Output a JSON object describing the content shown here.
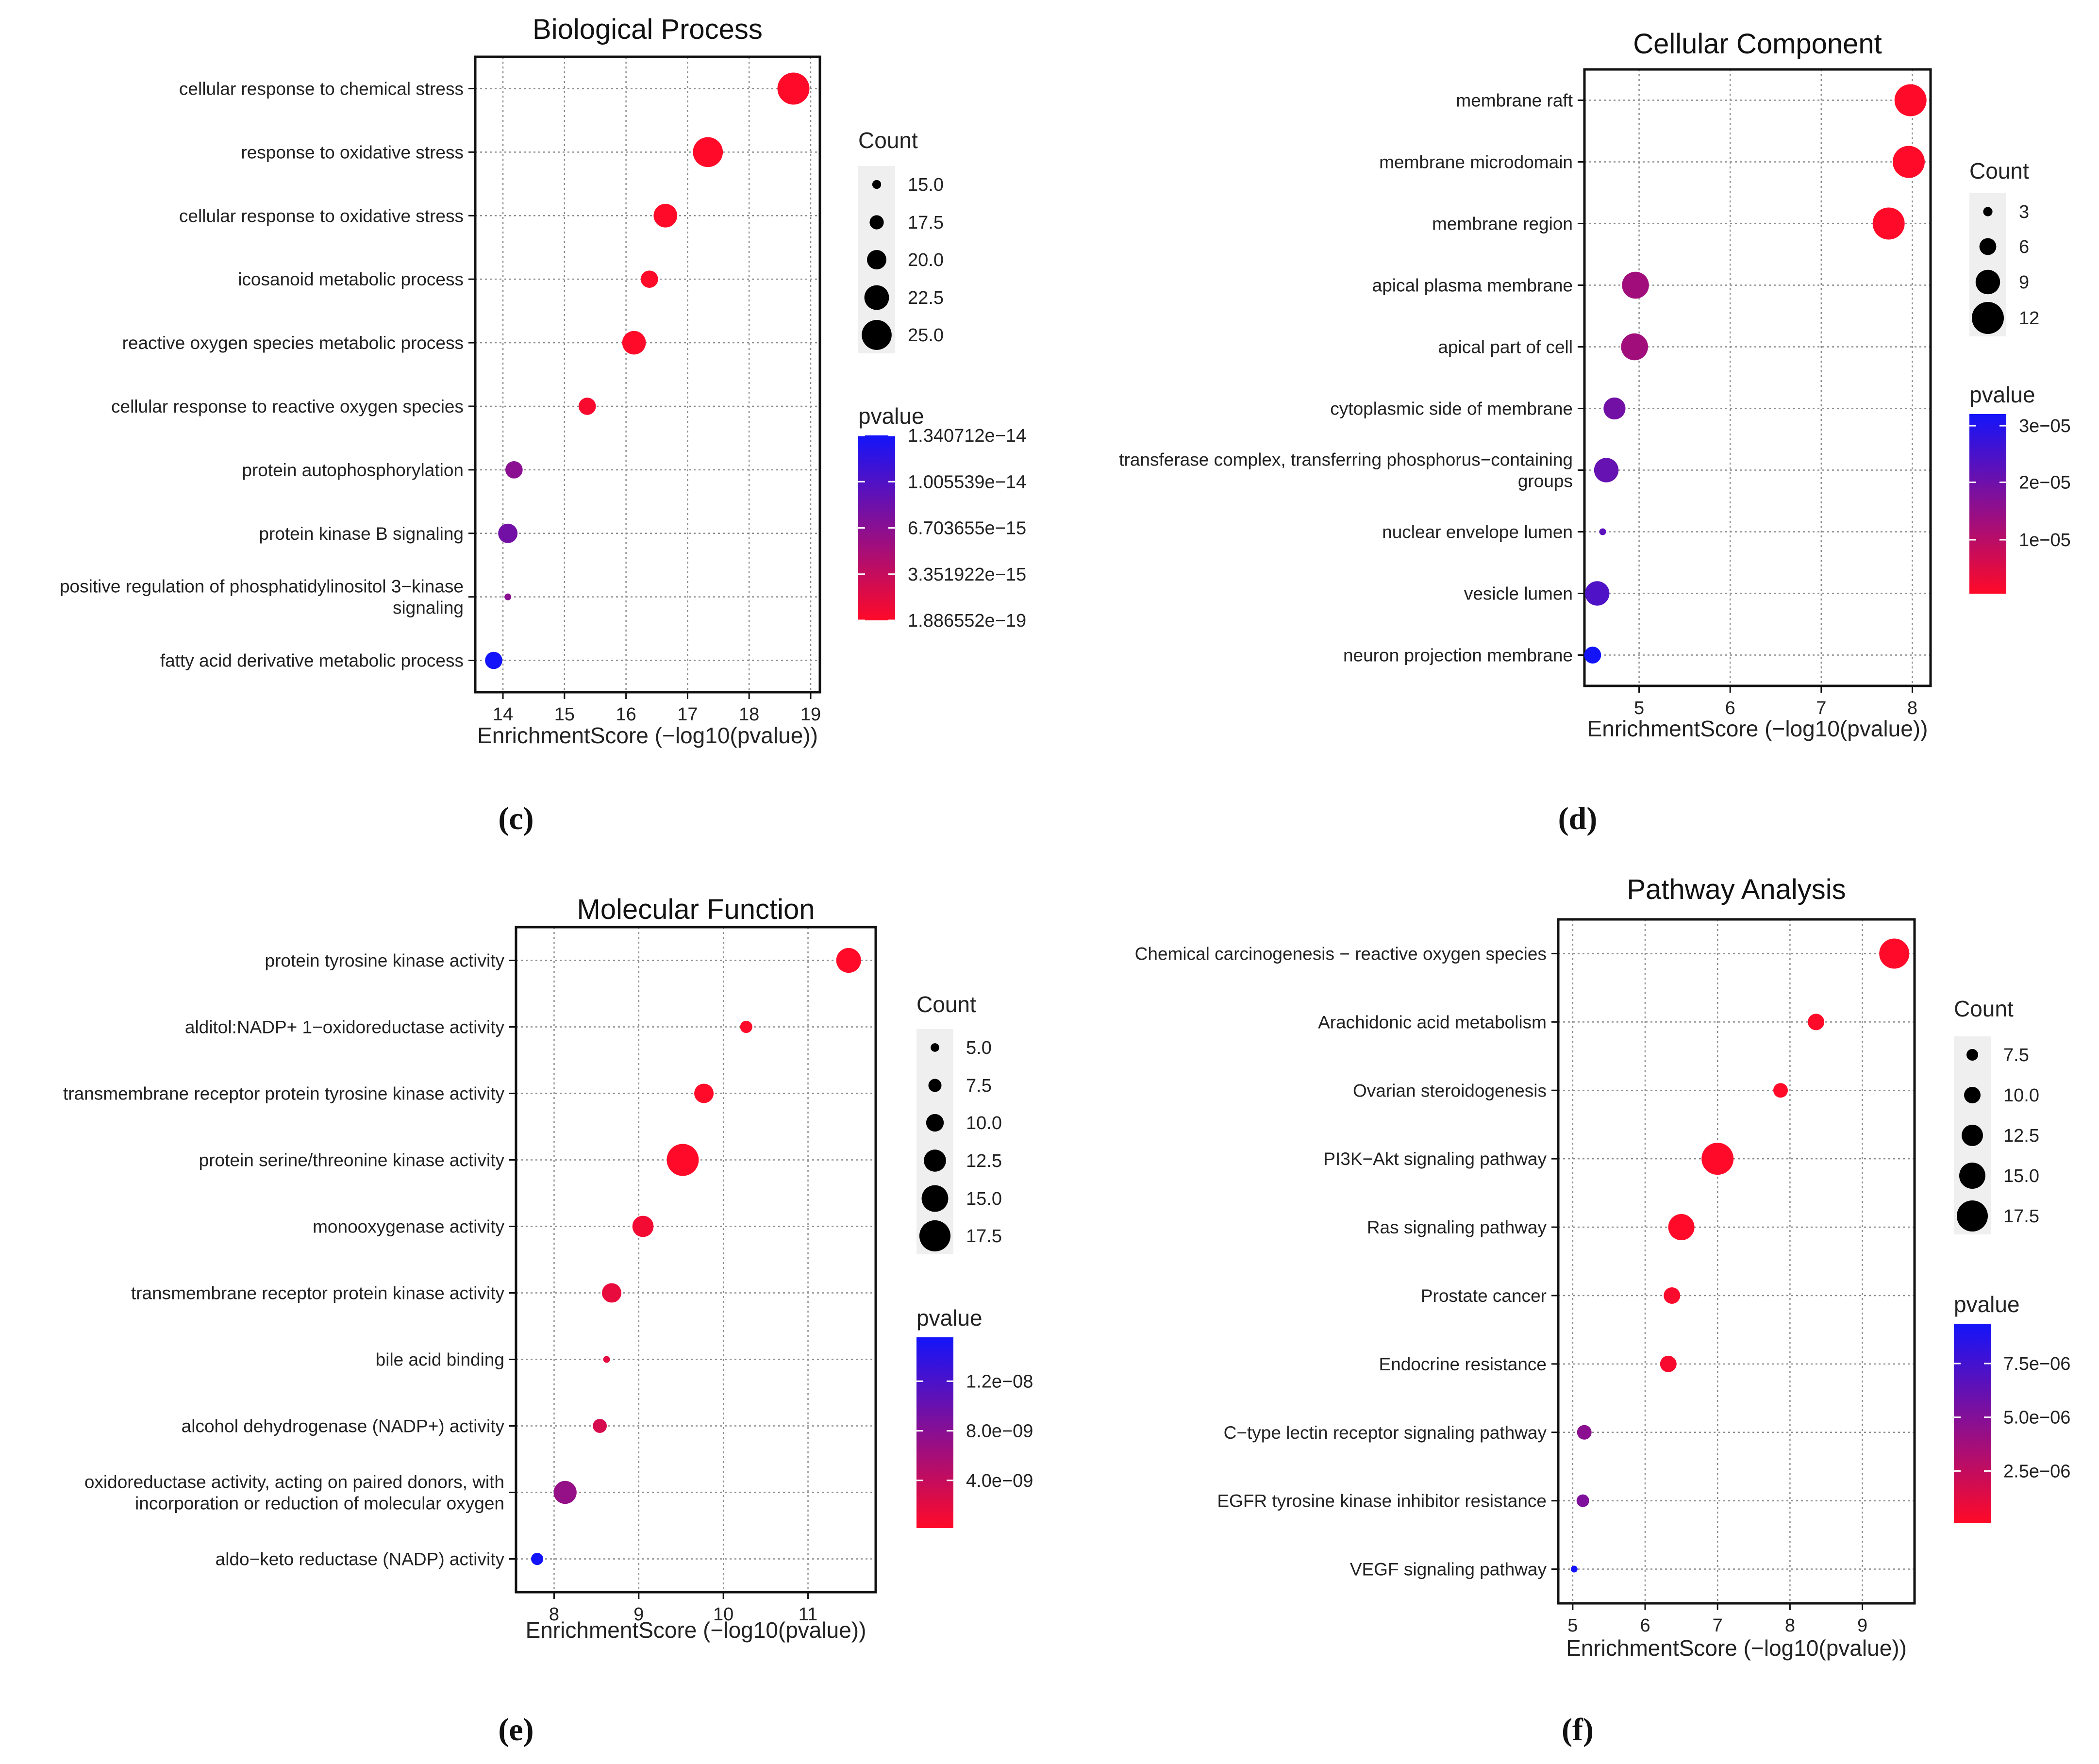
{
  "chart_data": [
    {
      "type": "scatter",
      "panel_label": "(c)",
      "title": "Biological Process",
      "xlabel": "EnrichmentScore (−log10(pvalue))",
      "xlim": [
        13.55,
        19.15
      ],
      "xticks": [
        14,
        15,
        16,
        17,
        18,
        19
      ],
      "xtick_labels": [
        "14",
        "15",
        "16",
        "17",
        "18",
        "19"
      ],
      "terms": [
        "cellular response to chemical stress",
        "response to oxidative stress",
        "cellular response to oxidative stress",
        "icosanoid metabolic process",
        "reactive oxygen species metabolic process",
        "cellular response to reactive oxygen species",
        "protein autophosphorylation",
        "protein kinase B signaling",
        "positive regulation of phosphatidylinositol 3−kinase signaling",
        "fatty acid derivative metabolic process"
      ],
      "term_lines": [
        [
          "cellular response to chemical stress"
        ],
        [
          "response to oxidative stress"
        ],
        [
          "cellular response to oxidative stress"
        ],
        [
          "icosanoid metabolic process"
        ],
        [
          "reactive oxygen species metabolic process"
        ],
        [
          "cellular response to reactive oxygen species"
        ],
        [
          "protein autophosphorylation"
        ],
        [
          "protein kinase B signaling"
        ],
        [
          "positive regulation of phosphatidylinositol 3−kinase",
          "signaling"
        ],
        [
          "fatty acid derivative metabolic process"
        ]
      ],
      "enrichment": [
        18.72,
        17.33,
        16.64,
        16.38,
        16.13,
        15.37,
        14.18,
        14.08,
        14.08,
        13.85
      ],
      "count": [
        26,
        25,
        22,
        19,
        22,
        19,
        19,
        20,
        14,
        19
      ],
      "pvalue_frac": [
        0.0,
        0.0,
        0.0,
        0.0,
        0.0,
        0.03,
        0.5,
        0.6,
        0.5,
        1.0
      ],
      "count_legend": {
        "title": "Count",
        "values": [
          15.0,
          17.5,
          20.0,
          22.5,
          25.0
        ],
        "labels": [
          "15.0",
          "17.5",
          "20.0",
          "22.5",
          "25.0"
        ],
        "min": 14,
        "max": 26
      },
      "pvalue_legend": {
        "title": "pvalue",
        "labels": [
          "1.340712e−14",
          "1.005539e−14",
          "6.703655e−15",
          "3.351922e−15",
          "1.886552e−19"
        ],
        "label_fracs": [
          1.0,
          0.75,
          0.5,
          0.25,
          0.0
        ]
      }
    },
    {
      "type": "scatter",
      "panel_label": "(d)",
      "title": "Cellular Component",
      "xlabel": "EnrichmentScore (−log10(pvalue))",
      "xlim": [
        4.4,
        8.2
      ],
      "xticks": [
        5,
        6,
        7,
        8
      ],
      "xtick_labels": [
        "5",
        "6",
        "7",
        "8"
      ],
      "terms": [
        "membrane raft",
        "membrane microdomain",
        "membrane region",
        "apical plasma membrane",
        "apical part of cell",
        "cytoplasmic side of membrane",
        "transferase complex, transferring phosphorus−containing groups",
        "nuclear envelope lumen",
        "vesicle lumen",
        "neuron projection membrane"
      ],
      "term_lines": [
        [
          "membrane raft"
        ],
        [
          "membrane microdomain"
        ],
        [
          "membrane region"
        ],
        [
          "apical plasma membrane"
        ],
        [
          "apical part of cell"
        ],
        [
          "cytoplasmic side of membrane"
        ],
        [
          "transferase complex, transferring phosphorus−containing",
          "groups"
        ],
        [
          "nuclear envelope lumen"
        ],
        [
          "vesicle lumen"
        ],
        [
          "neuron projection membrane"
        ]
      ],
      "enrichment": [
        7.98,
        7.96,
        7.74,
        4.96,
        4.95,
        4.73,
        4.64,
        4.6,
        4.54,
        4.49
      ],
      "count": [
        12,
        12,
        12,
        10,
        10,
        8,
        9,
        2,
        9,
        6
      ],
      "pvalue_frac": [
        0.0,
        0.0,
        0.0,
        0.4,
        0.4,
        0.6,
        0.65,
        0.7,
        0.75,
        1.0
      ],
      "count_legend": {
        "title": "Count",
        "values": [
          3,
          6,
          9,
          12
        ],
        "labels": [
          "3",
          "6",
          "9",
          "12"
        ],
        "min": 2,
        "max": 12
      },
      "pvalue_legend": {
        "title": "pvalue",
        "labels": [
          "3e−05",
          "2e−05",
          "1e−05"
        ],
        "label_fracs": [
          0.935,
          0.62,
          0.3
        ]
      }
    },
    {
      "type": "scatter",
      "panel_label": "(e)",
      "title": "Molecular Function",
      "xlabel": "EnrichmentScore (−log10(pvalue))",
      "xlim": [
        7.55,
        11.8
      ],
      "xticks": [
        8,
        9,
        10,
        11
      ],
      "xtick_labels": [
        "8",
        "9",
        "10",
        "11"
      ],
      "terms": [
        "protein tyrosine kinase activity",
        "alditol:NADP+ 1−oxidoreductase activity",
        "transmembrane receptor protein tyrosine kinase activity",
        "protein serine/threonine kinase activity",
        "monooxygenase activity",
        "transmembrane receptor protein kinase activity",
        "bile acid binding",
        "alcohol dehydrogenase (NADP+) activity",
        "oxidoreductase activity, acting on paired donors, with incorporation or reduction of molecular oxygen",
        "aldo−keto reductase (NADP) activity"
      ],
      "term_lines": [
        [
          "protein tyrosine kinase activity"
        ],
        [
          "alditol:NADP+ 1−oxidoreductase activity"
        ],
        [
          "transmembrane receptor protein tyrosine kinase activity"
        ],
        [
          "protein serine/threonine kinase activity"
        ],
        [
          "monooxygenase activity"
        ],
        [
          "transmembrane receptor protein kinase activity"
        ],
        [
          "bile acid binding"
        ],
        [
          "alcohol dehydrogenase (NADP+) activity"
        ],
        [
          "oxidoreductase activity, acting on paired donors, with",
          "incorporation or reduction of molecular oxygen"
        ],
        [
          "aldo−keto reductase (NADP) activity"
        ]
      ],
      "enrichment": [
        11.48,
        10.27,
        9.77,
        9.52,
        9.05,
        8.68,
        8.62,
        8.54,
        8.13,
        7.8
      ],
      "count": [
        14,
        7,
        11,
        18,
        12,
        11,
        4,
        8,
        13,
        7
      ],
      "pvalue_frac": [
        0.0,
        0.0,
        0.0,
        0.0,
        0.05,
        0.1,
        0.12,
        0.18,
        0.45,
        1.0
      ],
      "count_legend": {
        "title": "Count",
        "values": [
          5.0,
          7.5,
          10.0,
          12.5,
          15.0,
          17.5
        ],
        "labels": [
          "5.0",
          "7.5",
          "10.0",
          "12.5",
          "15.0",
          "17.5"
        ],
        "min": 4,
        "max": 18
      },
      "pvalue_legend": {
        "title": "pvalue",
        "labels": [
          "1.2e−08",
          "8.0e−09",
          "4.0e−09"
        ],
        "label_fracs": [
          0.77,
          0.51,
          0.25
        ]
      }
    },
    {
      "type": "scatter",
      "panel_label": "(f)",
      "title": "Pathway Analysis",
      "xlabel": "EnrichmentScore (−log10(pvalue))",
      "xlim": [
        4.8,
        9.72
      ],
      "xticks": [
        5,
        6,
        7,
        8,
        9
      ],
      "xtick_labels": [
        "5",
        "6",
        "7",
        "8",
        "9"
      ],
      "terms": [
        "Chemical carcinogenesis − reactive oxygen species",
        "Arachidonic acid metabolism",
        "Ovarian steroidogenesis",
        "PI3K−Akt signaling pathway",
        "Ras signaling pathway",
        "Prostate cancer",
        "Endocrine resistance",
        "C−type lectin receptor signaling pathway",
        "EGFR tyrosine kinase inhibitor resistance",
        "VEGF signaling pathway"
      ],
      "term_lines": [
        [
          "Chemical carcinogenesis − reactive oxygen species"
        ],
        [
          "Arachidonic acid metabolism"
        ],
        [
          "Ovarian steroidogenesis"
        ],
        [
          "PI3K−Akt signaling pathway"
        ],
        [
          "Ras signaling pathway"
        ],
        [
          "Prostate cancer"
        ],
        [
          "Endocrine resistance"
        ],
        [
          "C−type lectin receptor signaling pathway"
        ],
        [
          "EGFR tyrosine kinase inhibitor resistance"
        ],
        [
          "VEGF signaling pathway"
        ]
      ],
      "enrichment": [
        9.44,
        8.36,
        7.87,
        7.0,
        6.5,
        6.37,
        6.32,
        5.16,
        5.14,
        5.02
      ],
      "count": [
        17,
        10,
        9,
        18,
        15,
        10,
        10,
        9,
        8,
        5
      ],
      "pvalue_frac": [
        0.0,
        0.0,
        0.0,
        0.0,
        0.0,
        0.02,
        0.03,
        0.5,
        0.55,
        1.0
      ],
      "count_legend": {
        "title": "Count",
        "values": [
          7.5,
          10.0,
          12.5,
          15.0,
          17.5
        ],
        "labels": [
          "7.5",
          "10.0",
          "12.5",
          "15.0",
          "17.5"
        ],
        "min": 5,
        "max": 18
      },
      "pvalue_legend": {
        "title": "pvalue",
        "labels": [
          "7.5e−06",
          "5.0e−06",
          "2.5e−06"
        ],
        "label_fracs": [
          0.8,
          0.53,
          0.26
        ]
      }
    }
  ]
}
